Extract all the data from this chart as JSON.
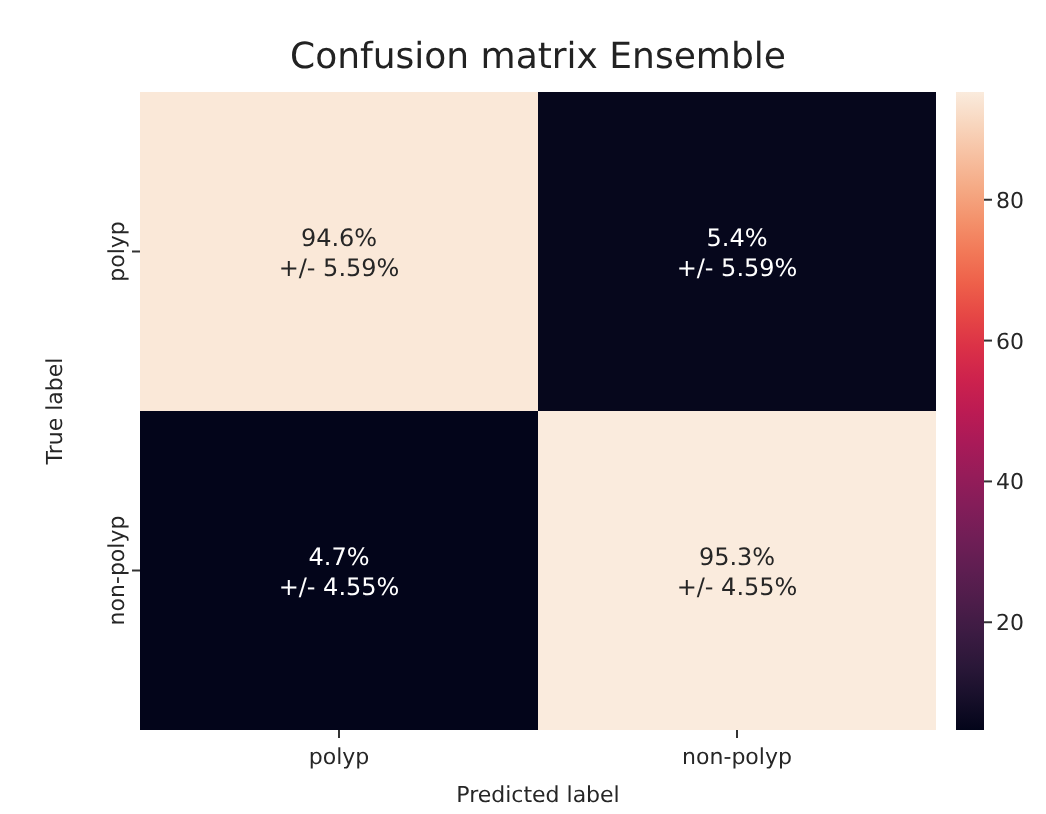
{
  "chart_data": {
    "type": "heatmap",
    "title": "Confusion matrix Ensemble",
    "xlabel": "Predicted label",
    "ylabel": "True label",
    "categories": [
      "polyp",
      "non-polyp"
    ],
    "y_categories": [
      "polyp",
      "non-polyp"
    ],
    "cells": [
      [
        94.6,
        5.4
      ],
      [
        4.7,
        95.3
      ]
    ],
    "cell_labels": [
      [
        "94.6%\n+/- 5.59%",
        "5.4%\n+/- 5.59%"
      ],
      [
        "4.7%\n+/- 4.55%",
        "95.3%\n+/- 4.55%"
      ]
    ],
    "clim": [
      4.7,
      95.3
    ],
    "cticks": [
      20,
      40,
      60,
      80
    ]
  }
}
